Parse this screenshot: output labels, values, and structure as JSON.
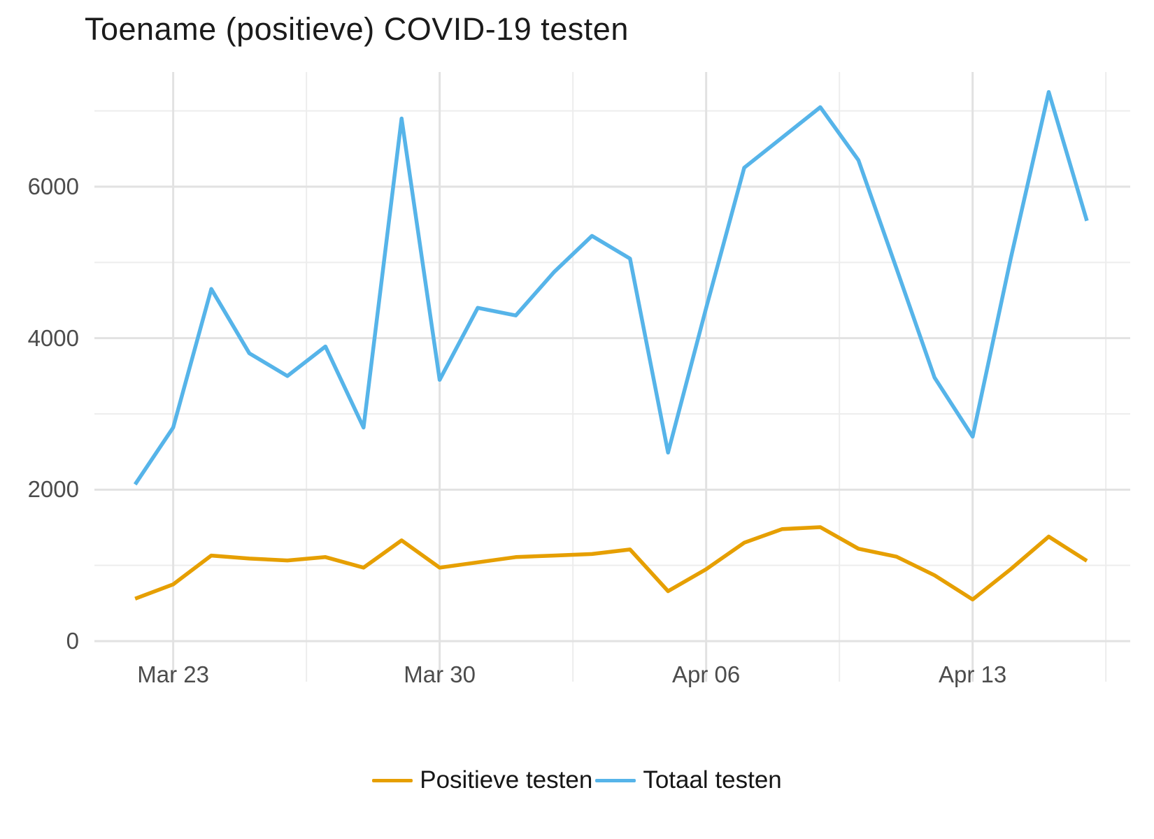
{
  "title": "Toename (positieve) COVID-19 testen",
  "colors": {
    "positive": "#E69F00",
    "total": "#56B4E9",
    "grid_major": "#E2E2E2",
    "grid_minor": "#EDEDED",
    "axis_text": "#4C4C4C",
    "background": "#FFFFFF"
  },
  "chart_data": {
    "type": "line",
    "x": [
      "Mar 22",
      "Mar 23",
      "Mar 24",
      "Mar 25",
      "Mar 26",
      "Mar 27",
      "Mar 28",
      "Mar 29",
      "Mar 30",
      "Mar 31",
      "Apr 01",
      "Apr 02",
      "Apr 03",
      "Apr 04",
      "Apr 05",
      "Apr 06",
      "Apr 07",
      "Apr 08",
      "Apr 09",
      "Apr 10",
      "Apr 11",
      "Apr 12",
      "Apr 13",
      "Apr 14",
      "Apr 15",
      "Apr 16"
    ],
    "series": [
      {
        "name": "Positieve testen",
        "color": "#E69F00",
        "values": [
          560,
          750,
          1130,
          1090,
          1065,
          1110,
          970,
          1330,
          970,
          1040,
          1110,
          1130,
          1150,
          1210,
          660,
          950,
          1300,
          1480,
          1505,
          1220,
          1115,
          870,
          550,
          950,
          1380,
          1060
        ]
      },
      {
        "name": "Totaal testen",
        "color": "#56B4E9",
        "values": [
          2070,
          2820,
          4650,
          3800,
          3500,
          3890,
          2820,
          6900,
          3450,
          4400,
          4300,
          4870,
          5350,
          5050,
          2490,
          4400,
          6250,
          6650,
          7050,
          6350,
          4920,
          3480,
          2700,
          5050,
          7250,
          5550
        ]
      }
    ],
    "title": "Toename (positieve) COVID-19 testen",
    "xlabel": "",
    "ylabel": "",
    "x_tick_labels": [
      "Mar 23",
      "Mar 30",
      "Apr 06",
      "Apr 13"
    ],
    "x_tick_positions": [
      1,
      8,
      15,
      22
    ],
    "x_minor_positions": [
      4.5,
      11.5,
      18.5,
      25.5
    ],
    "y_ticks": [
      0,
      2000,
      4000,
      6000
    ],
    "y_minor_ticks": [
      1000,
      3000,
      5000,
      7000
    ],
    "ylim": [
      0,
      7300
    ],
    "grid": true,
    "legend_position": "bottom"
  }
}
